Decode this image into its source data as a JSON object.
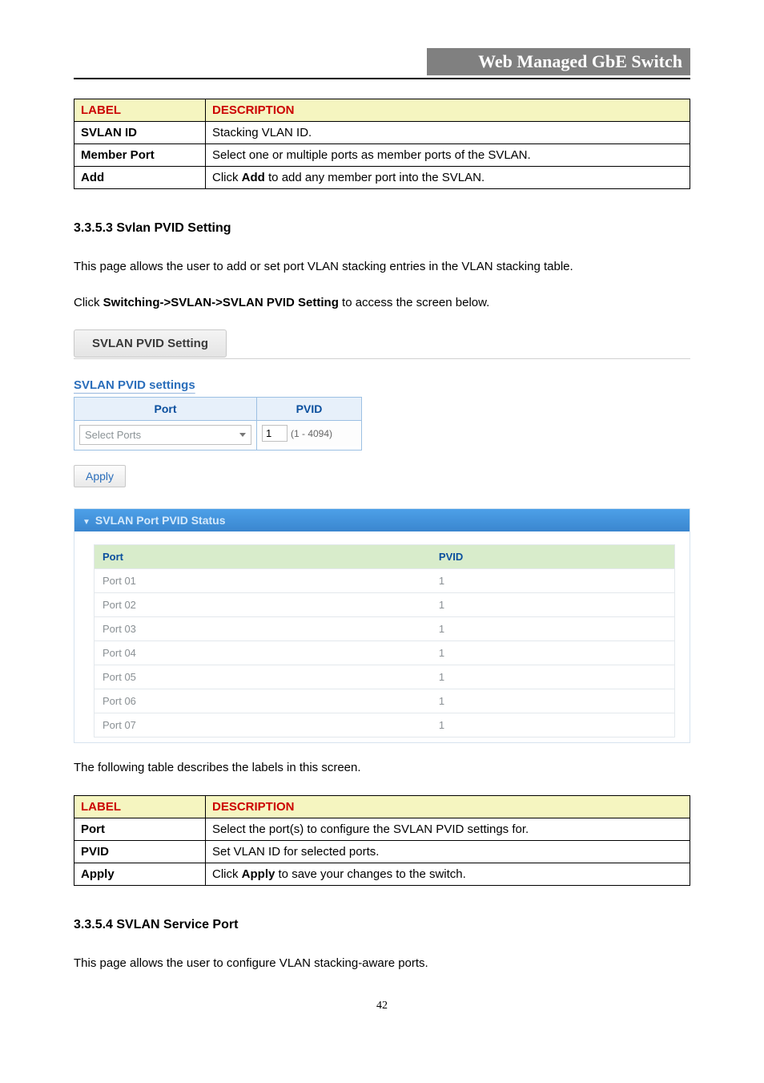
{
  "header": {
    "title": "Web Managed GbE Switch"
  },
  "table1": {
    "headers": {
      "label": "LABEL",
      "desc": "DESCRIPTION"
    },
    "rows": [
      {
        "label": "SVLAN ID",
        "desc": "Stacking VLAN ID."
      },
      {
        "label": "Member Port",
        "desc": "Select one or multiple ports as member ports of the SVLAN."
      },
      {
        "label": "Add",
        "desc_pre": "Click ",
        "desc_bold": "Add",
        "desc_post": " to add any member port into the SVLAN."
      }
    ]
  },
  "section3353": {
    "heading": "3.3.5.3 Svlan PVID Setting",
    "p1": "This page allows the user to add or set port VLAN stacking entries in the VLAN stacking table.",
    "p2_pre": "Click ",
    "p2_bold": "Switching->SVLAN->SVLAN PVID Setting",
    "p2_post": " to access the screen below."
  },
  "capture": {
    "heading": "SVLAN PVID Setting",
    "settings_title": "SVLAN PVID settings",
    "th_port": "Port",
    "th_pvid": "PVID",
    "dd_label": "Select Ports",
    "pvid_value": "1",
    "pvid_range": "(1 - 4094)",
    "apply": "Apply",
    "status_title": "SVLAN Port PVID Status",
    "status_headers": {
      "port": "Port",
      "pvid": "PVID"
    },
    "status_rows": [
      {
        "port": "Port 01",
        "pvid": "1"
      },
      {
        "port": "Port 02",
        "pvid": "1"
      },
      {
        "port": "Port 03",
        "pvid": "1"
      },
      {
        "port": "Port 04",
        "pvid": "1"
      },
      {
        "port": "Port 05",
        "pvid": "1"
      },
      {
        "port": "Port 06",
        "pvid": "1"
      },
      {
        "port": "Port 07",
        "pvid": "1"
      }
    ]
  },
  "table2_intro": "The following table describes the labels in this screen.",
  "table2": {
    "headers": {
      "label": "LABEL",
      "desc": "DESCRIPTION"
    },
    "rows": [
      {
        "label": "Port",
        "desc": "Select the port(s) to configure the SVLAN PVID settings for."
      },
      {
        "label": "PVID",
        "desc": "Set VLAN ID for selected ports."
      },
      {
        "label": "Apply",
        "desc_pre": "Click ",
        "desc_bold": "Apply",
        "desc_post": " to save your changes to the switch."
      }
    ]
  },
  "section3354": {
    "heading": "3.3.5.4 SVLAN Service Port",
    "p1": "This page allows the user to configure VLAN stacking-aware ports."
  },
  "page_num": "42"
}
